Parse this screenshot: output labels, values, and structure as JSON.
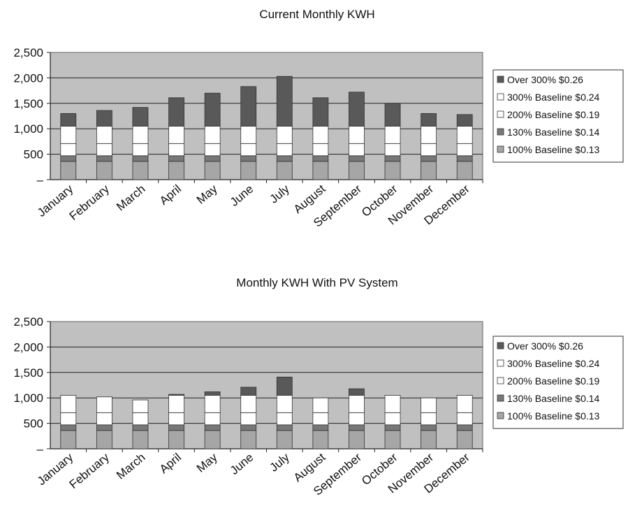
{
  "chart_data": [
    {
      "type": "bar",
      "stacked": true,
      "title": "Current Monthly KWH",
      "categories": [
        "January",
        "February",
        "March",
        "April",
        "May",
        "June",
        "July",
        "August",
        "September",
        "October",
        "November",
        "December"
      ],
      "ylim": [
        0,
        2500
      ],
      "yticks": [
        "–",
        "500",
        "1,000",
        "1,500",
        "2,000",
        "2,500"
      ],
      "ytick_values": [
        0,
        500,
        1000,
        1500,
        2000,
        2500
      ],
      "grid": true,
      "legend_position": "right",
      "series": [
        {
          "name": "100% Baseline $0.13",
          "color": "#a6a6a6",
          "values": [
            360,
            360,
            360,
            360,
            360,
            360,
            360,
            360,
            360,
            360,
            360,
            360
          ]
        },
        {
          "name": "130% Baseline $0.14",
          "color": "#777777",
          "values": [
            110,
            110,
            110,
            110,
            110,
            110,
            110,
            110,
            110,
            110,
            110,
            110
          ]
        },
        {
          "name": "200% Baseline $0.19",
          "color": "#ffffff",
          "values": [
            240,
            240,
            240,
            240,
            240,
            240,
            240,
            240,
            240,
            240,
            240,
            240
          ]
        },
        {
          "name": "300% Baseline $0.24",
          "color": "#ffffff",
          "values": [
            340,
            340,
            340,
            340,
            340,
            340,
            340,
            340,
            340,
            340,
            340,
            340
          ]
        },
        {
          "name": "Over 300% $0.26",
          "color": "#595959",
          "values": [
            250,
            310,
            370,
            560,
            650,
            780,
            980,
            560,
            670,
            450,
            250,
            230
          ]
        }
      ]
    },
    {
      "type": "bar",
      "stacked": true,
      "title": "Monthly KWH With PV System",
      "categories": [
        "January",
        "February",
        "March",
        "April",
        "May",
        "June",
        "July",
        "August",
        "September",
        "October",
        "November",
        "December"
      ],
      "ylim": [
        0,
        2500
      ],
      "yticks": [
        "–",
        "500",
        "1,000",
        "1,500",
        "2,000",
        "2,500"
      ],
      "ytick_values": [
        0,
        500,
        1000,
        1500,
        2000,
        2500
      ],
      "grid": true,
      "legend_position": "right",
      "series": [
        {
          "name": "100% Baseline $0.13",
          "color": "#a6a6a6",
          "values": [
            360,
            360,
            360,
            360,
            360,
            360,
            360,
            360,
            360,
            360,
            360,
            360
          ]
        },
        {
          "name": "130% Baseline $0.14",
          "color": "#777777",
          "values": [
            110,
            110,
            110,
            110,
            110,
            110,
            110,
            110,
            110,
            110,
            110,
            110
          ]
        },
        {
          "name": "200% Baseline $0.19",
          "color": "#ffffff",
          "values": [
            240,
            240,
            240,
            240,
            240,
            240,
            240,
            240,
            240,
            240,
            240,
            240
          ]
        },
        {
          "name": "300% Baseline $0.24",
          "color": "#ffffff",
          "values": [
            340,
            310,
            250,
            340,
            340,
            340,
            340,
            290,
            340,
            340,
            290,
            340
          ]
        },
        {
          "name": "Over 300% $0.26",
          "color": "#595959",
          "values": [
            0,
            0,
            0,
            20,
            70,
            160,
            360,
            0,
            130,
            0,
            0,
            0
          ]
        }
      ]
    }
  ]
}
